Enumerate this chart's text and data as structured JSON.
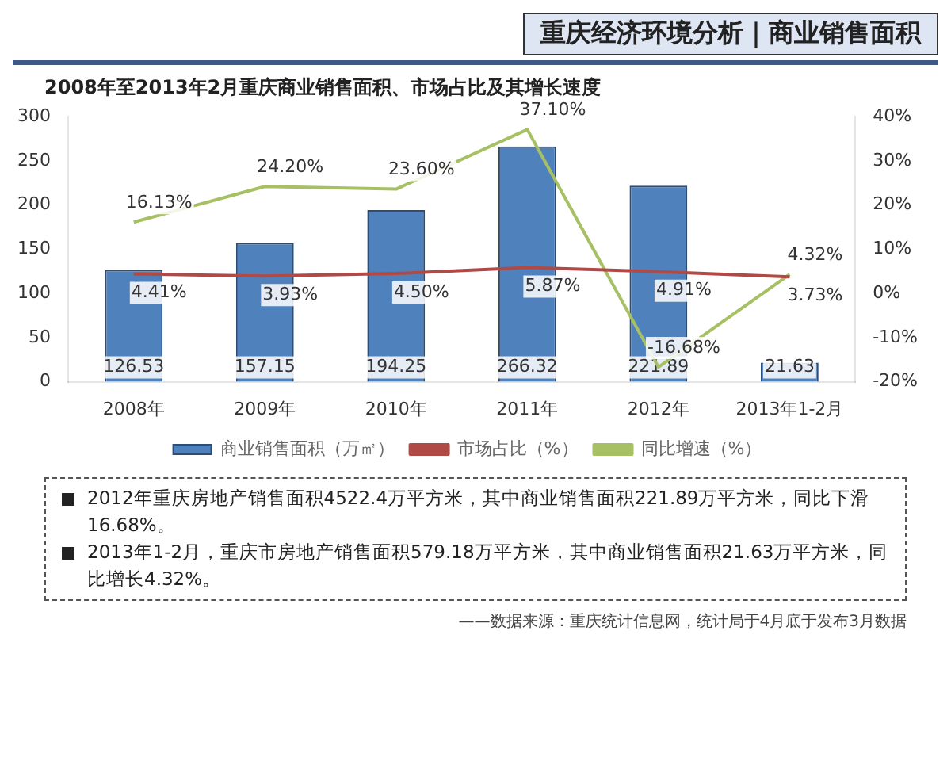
{
  "chart_data": {
    "type": "bar",
    "title": "重庆经济环境分析｜商业销售面积",
    "subtitle": "2008年至2013年2月重庆商业销售面积、市场占比及其增长速度",
    "annotations": [
      "2012年重庆房地产销售面积4522.4万平方米，其中商业销售面积221.89万平方米，同比下滑16.68%。",
      "2013年1-2月，重庆市房地产销售面积579.18万平方米，其中商业销售面积21.63万平方米，同比增长4.32%。",
      "——数据来源：重庆统计信息网，统计局于4月底于发布3月数据"
    ],
    "categories": [
      "2008年",
      "2009年",
      "2010年",
      "2011年",
      "2012年",
      "2013年1-2月"
    ],
    "series": [
      {
        "name": "商业销售面积（万㎡）",
        "color": "#4f81bd",
        "values": [
          126.53,
          157.15,
          194.25,
          266.32,
          221.89,
          21.63
        ],
        "value_labels": [
          "126.53",
          "157.15",
          "194.25",
          "266.32",
          "221.89",
          "21.63"
        ]
      },
      {
        "name": "市场占比（%）",
        "type": "line",
        "axis": "y2",
        "color": "#b04a46",
        "values": [
          4.41,
          3.93,
          4.5,
          5.87,
          4.91,
          3.73
        ],
        "value_labels": [
          "4.41%",
          "3.93%",
          "4.50%",
          "5.87%",
          "4.91%",
          "3.73%"
        ]
      },
      {
        "name": "同比增速（%）",
        "type": "line",
        "axis": "y2",
        "color": "#a6c063",
        "values": [
          16.13,
          24.2,
          23.6,
          37.1,
          -16.68,
          4.32
        ],
        "value_labels": [
          "16.13%",
          "24.20%",
          "23.60%",
          "37.10%",
          "-16.68%",
          "4.32%"
        ]
      }
    ],
    "ylim": [
      0,
      300
    ],
    "yticks": [
      0,
      50,
      100,
      150,
      200,
      250,
      300
    ],
    "y2lim": [
      -20,
      40
    ],
    "y2ticks": [
      {
        "value": -20,
        "label": "-20%"
      },
      {
        "value": -10,
        "label": "-10%"
      },
      {
        "value": 0,
        "label": "0%"
      },
      {
        "value": 10,
        "label": "10%"
      },
      {
        "value": 20,
        "label": "20%"
      },
      {
        "value": 30,
        "label": "30%"
      },
      {
        "value": 40,
        "label": "40%"
      }
    ],
    "legend": "bottom",
    "marker": "none"
  }
}
